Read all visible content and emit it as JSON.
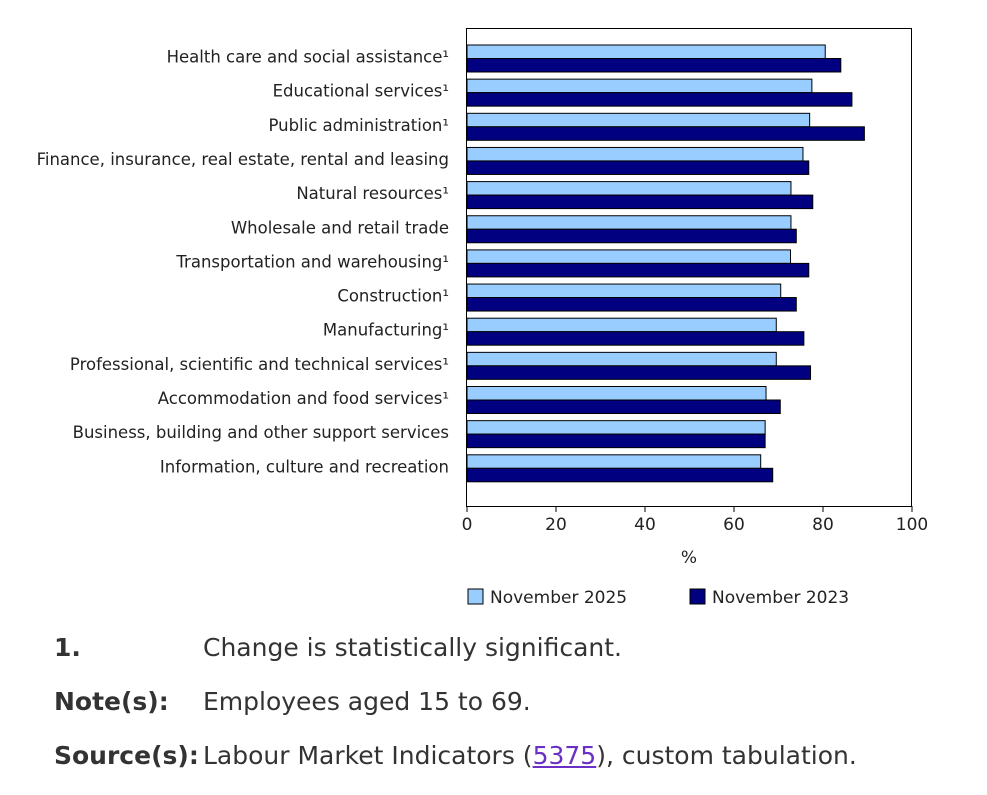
{
  "chart_data": {
    "type": "bar",
    "orientation": "horizontal",
    "categories": [
      "Health care and social assistance¹",
      "Educational services¹",
      "Public administration¹",
      "Finance, insurance, real estate, rental and leasing",
      "Natural resources¹",
      "Wholesale and retail trade",
      "Transportation and warehousing¹",
      "Construction¹",
      "Manufacturing¹",
      "Professional, scientific and technical services¹",
      "Accommodation and food services¹",
      "Business, building and other support services",
      "Information, culture and recreation"
    ],
    "series": [
      {
        "name": "November 2025",
        "color": "#99ccff",
        "values": [
          80.5,
          77.5,
          77,
          75.5,
          72.8,
          72.8,
          72.7,
          70.5,
          69.5,
          69.5,
          67.2,
          67,
          66
        ]
      },
      {
        "name": "November 2023",
        "color": "#000080",
        "values": [
          84,
          86.5,
          89.3,
          76.8,
          77.7,
          74,
          76.8,
          74,
          75.7,
          77.2,
          70.4,
          67,
          68.7
        ]
      }
    ],
    "xlabel": "%",
    "xlim": [
      0,
      100
    ],
    "xticks": [
      0,
      20,
      40,
      60,
      80,
      100
    ],
    "legend_position": "bottom",
    "grid": false
  },
  "notes": [
    {
      "key": "1.",
      "text": "Change is statistically significant."
    },
    {
      "key": "Note(s):",
      "text": "Employees aged 15 to 69."
    }
  ],
  "source": {
    "key": "Source(s):",
    "before": "Labour Market Indicators (",
    "link": "5375",
    "after": "), custom tabulation."
  }
}
